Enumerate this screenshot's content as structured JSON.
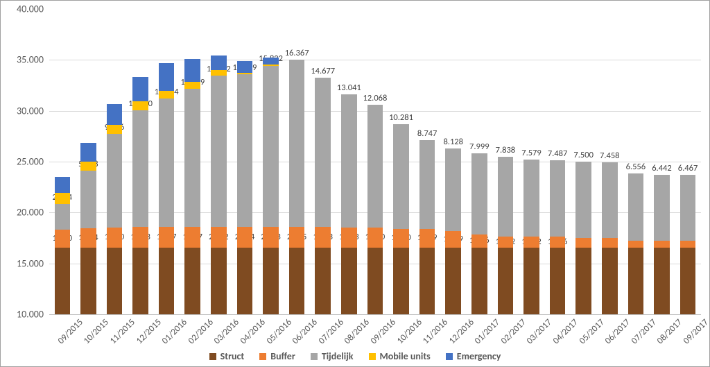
{
  "chart": {
    "type": "stacked-bar",
    "background_color": "#ffffff",
    "border_color": "#a0a0a0",
    "grid_color": "#d9d9d9",
    "axis_label_color": "#595959",
    "data_label_color": "#404040",
    "font_family": "Calibri",
    "axis_font_size_pt": 10,
    "data_label_font_size_pt": 9,
    "y_axis": {
      "min": 10000,
      "max": 40000,
      "tick_step": 5000,
      "tick_labels": [
        "10.000",
        "15.000",
        "20.000",
        "25.000",
        "30.000",
        "35.000",
        "40.000"
      ]
    },
    "series": [
      {
        "key": "struct",
        "label": "Struct",
        "color": "#7f4b21"
      },
      {
        "key": "buffer",
        "label": "Buffer",
        "color": "#ed7d31"
      },
      {
        "key": "tijdelijk",
        "label": "Tijdelijk",
        "color": "#a6a6a6"
      },
      {
        "key": "mobile",
        "label": "Mobile units",
        "color": "#ffc000"
      },
      {
        "key": "emergency",
        "label": "Emergency",
        "color": "#4472c4"
      }
    ],
    "categories": [
      "09/2015",
      "10/2015",
      "11/2015",
      "12/2015",
      "01/2016",
      "02/2016",
      "03/2016",
      "04/2016",
      "05/2016",
      "06/2016",
      "07/2016",
      "08/2016",
      "09/2016",
      "10/2016",
      "11/2016",
      "12/2016",
      "01/2017",
      "02/2017",
      "03/2017",
      "04/2017",
      "05/2017",
      "06/2017",
      "07/2017",
      "08/2017",
      "09/2017"
    ],
    "data": [
      {
        "struct": 16580,
        "buffer": 1720,
        "tijdelijk": 2554,
        "mobile": 1050,
        "emergency": 1630,
        "labels": {
          "buffer": "1.720",
          "tijdelijk": "2.554"
        }
      },
      {
        "struct": 16580,
        "buffer": 1874,
        "tijdelijk": 5678,
        "mobile": 900,
        "emergency": 1780,
        "labels": {
          "buffer": "1.874",
          "tijdelijk": "5.678"
        }
      },
      {
        "struct": 16580,
        "buffer": 1950,
        "tijdelijk": 9186,
        "mobile": 900,
        "emergency": 2070,
        "labels": {
          "buffer": "1.950",
          "tijdelijk": "9.186"
        }
      },
      {
        "struct": 16580,
        "buffer": 1983,
        "tijdelijk": 11500,
        "mobile": 840,
        "emergency": 2450,
        "labels": {
          "buffer": "1.983",
          "tijdelijk": "11.500"
        }
      },
      {
        "struct": 16580,
        "buffer": 1987,
        "tijdelijk": 12624,
        "mobile": 780,
        "emergency": 2700,
        "labels": {
          "buffer": "1.987",
          "tijdelijk": "12.624"
        }
      },
      {
        "struct": 16580,
        "buffer": 1987,
        "tijdelijk": 13609,
        "mobile": 660,
        "emergency": 2260,
        "labels": {
          "buffer": "1.987",
          "tijdelijk": "13.609"
        }
      },
      {
        "struct": 16580,
        "buffer": 2032,
        "tijdelijk": 14822,
        "mobile": 550,
        "emergency": 1470,
        "labels": {
          "buffer": "2.032",
          "tijdelijk": "14.822"
        }
      },
      {
        "struct": 16580,
        "buffer": 2024,
        "tijdelijk": 14959,
        "mobile": 200,
        "emergency": 1100,
        "labels": {
          "buffer": "2.024",
          "tijdelijk": "14.959"
        }
      },
      {
        "struct": 16580,
        "buffer": 2043,
        "tijdelijk": 15822,
        "mobile": 80,
        "emergency": 720,
        "labels": {
          "buffer": "2.043",
          "tijdelijk": "15.822"
        }
      },
      {
        "struct": 16580,
        "buffer": 2045,
        "tijdelijk": 16367,
        "mobile": 0,
        "emergency": 0,
        "labels": {
          "buffer": "2.045",
          "tijdelijk": "16.367"
        }
      },
      {
        "struct": 16580,
        "buffer": 1993,
        "tijdelijk": 14677,
        "mobile": 0,
        "emergency": 0,
        "labels": {
          "buffer": "1.993",
          "tijdelijk": "14.677"
        }
      },
      {
        "struct": 16580,
        "buffer": 1973,
        "tijdelijk": 13041,
        "mobile": 0,
        "emergency": 0,
        "labels": {
          "buffer": "1.973",
          "tijdelijk": "13.041"
        }
      },
      {
        "struct": 16580,
        "buffer": 1960,
        "tijdelijk": 12068,
        "mobile": 0,
        "emergency": 0,
        "labels": {
          "buffer": "1.960",
          "tijdelijk": "12.068"
        }
      },
      {
        "struct": 16580,
        "buffer": 1790,
        "tijdelijk": 10281,
        "mobile": 0,
        "emergency": 0,
        "labels": {
          "buffer": "1.790",
          "tijdelijk": "10.281"
        }
      },
      {
        "struct": 16580,
        "buffer": 1789,
        "tijdelijk": 8747,
        "mobile": 0,
        "emergency": 0,
        "labels": {
          "buffer": "1.789",
          "tijdelijk": "8.747"
        }
      },
      {
        "struct": 16580,
        "buffer": 1599,
        "tijdelijk": 8128,
        "mobile": 0,
        "emergency": 0,
        "labels": {
          "buffer": "1.599",
          "tijdelijk": "8.128"
        }
      },
      {
        "struct": 16580,
        "buffer": 1266,
        "tijdelijk": 7999,
        "mobile": 0,
        "emergency": 0,
        "labels": {
          "buffer": "1.266",
          "tijdelijk": "7.999"
        }
      },
      {
        "struct": 16580,
        "buffer": 1052,
        "tijdelijk": 7838,
        "mobile": 0,
        "emergency": 0,
        "labels": {
          "buffer": "1.052",
          "tijdelijk": "7.838"
        }
      },
      {
        "struct": 16580,
        "buffer": 1052,
        "tijdelijk": 7579,
        "mobile": 0,
        "emergency": 0,
        "labels": {
          "buffer": "1.052",
          "tijdelijk": "7.579"
        }
      },
      {
        "struct": 16580,
        "buffer": 1046,
        "tijdelijk": 7487,
        "mobile": 0,
        "emergency": 0,
        "labels": {
          "buffer": "1.046",
          "tijdelijk": "7.487"
        }
      },
      {
        "struct": 16580,
        "buffer": 946,
        "tijdelijk": 7500,
        "mobile": 0,
        "emergency": 0,
        "labels": {
          "buffer": "946",
          "tijdelijk": "7.500"
        }
      },
      {
        "struct": 16580,
        "buffer": 914,
        "tijdelijk": 7458,
        "mobile": 0,
        "emergency": 0,
        "labels": {
          "buffer": "914",
          "tijdelijk": "7.458"
        }
      },
      {
        "struct": 16580,
        "buffer": 679,
        "tijdelijk": 6556,
        "mobile": 0,
        "emergency": 0,
        "labels": {
          "buffer": "679",
          "tijdelijk": "6.556"
        }
      },
      {
        "struct": 16580,
        "buffer": 679,
        "tijdelijk": 6442,
        "mobile": 0,
        "emergency": 0,
        "labels": {
          "buffer": "679",
          "tijdelijk": "6.442"
        }
      },
      {
        "struct": 16580,
        "buffer": 679,
        "tijdelijk": 6467,
        "mobile": 0,
        "emergency": 0,
        "labels": {
          "buffer": "679",
          "tijdelijk": "6.467"
        }
      }
    ]
  }
}
